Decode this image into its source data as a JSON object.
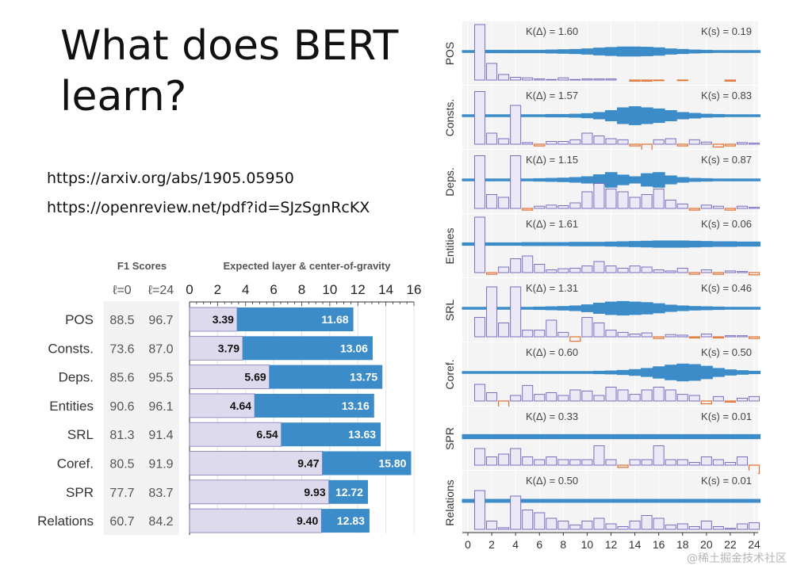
{
  "slide": {
    "title": "What does BERT learn?",
    "links": [
      "https://arxiv.org/abs/1905.05950",
      "https://openreview.net/pdf?id=SJzSgnRcKX"
    ],
    "watermark": "@稀土掘金技术社区"
  },
  "colors": {
    "accent": "#3b8cc8",
    "light_bar": "#dcdaec",
    "light_bar_border": "#8078b8",
    "hist_bar": "#ece9f6",
    "hist_border": "#7a70c0",
    "neg_hist": "#e07030",
    "panel_bg": "#f4f4f4"
  },
  "chart_data": [
    {
      "type": "table",
      "title": "F1 Scores",
      "columns": [
        "ℓ=0",
        "ℓ=24"
      ],
      "rows": [
        {
          "label": "POS",
          "values": [
            "88.5",
            "96.7"
          ]
        },
        {
          "label": "Consts.",
          "values": [
            "73.6",
            "87.0"
          ]
        },
        {
          "label": "Deps.",
          "values": [
            "85.6",
            "95.5"
          ]
        },
        {
          "label": "Entities",
          "values": [
            "90.6",
            "96.1"
          ]
        },
        {
          "label": "SRL",
          "values": [
            "81.3",
            "91.4"
          ]
        },
        {
          "label": "Coref.",
          "values": [
            "80.5",
            "91.9"
          ]
        },
        {
          "label": "SPR",
          "values": [
            "77.7",
            "83.7"
          ]
        },
        {
          "label": "Relations",
          "values": [
            "60.7",
            "84.2"
          ]
        }
      ]
    },
    {
      "type": "bar",
      "title": "Expected layer & center-of-gravity",
      "categories": [
        "POS",
        "Consts.",
        "Deps.",
        "Entities",
        "SRL",
        "Coref.",
        "SPR",
        "Relations"
      ],
      "xlim": [
        0,
        16
      ],
      "xticks": [
        0,
        2,
        4,
        6,
        8,
        10,
        12,
        14,
        16
      ],
      "series": [
        {
          "values": [
            3.39,
            3.79,
            5.69,
            4.64,
            6.54,
            9.47,
            9.93,
            9.4
          ],
          "labels": [
            "3.39",
            "3.79",
            "5.69",
            "4.64",
            "6.54",
            "9.47",
            "9.93",
            "9.40"
          ]
        },
        {
          "values": [
            11.68,
            13.06,
            13.75,
            13.16,
            13.63,
            15.8,
            12.72,
            12.83
          ],
          "labels": [
            "11.68",
            "13.06",
            "13.75",
            "13.16",
            "13.63",
            "15.80",
            "12.72",
            "12.83"
          ]
        }
      ]
    },
    {
      "type": "bar",
      "xlim": [
        0,
        24
      ],
      "xticks": [
        0,
        2,
        4,
        6,
        8,
        10,
        12,
        14,
        16,
        18,
        20,
        22,
        24
      ],
      "panels": [
        {
          "label": "POS",
          "k_delta": "K(Δ) = 1.60",
          "k_s": "K(s) = 0.19",
          "width": [
            0.5,
            0.5,
            0.6,
            0.6,
            0.6,
            0.6,
            0.6,
            0.7,
            0.8,
            0.9,
            1.1,
            1.4,
            1.6,
            1.8,
            1.8,
            1.7,
            1.5,
            1.1,
            0.9,
            0.7,
            0.6,
            0.5,
            0.5,
            0.5,
            0.5
          ],
          "delta": [
            0,
            1.0,
            0.3,
            0.1,
            0.05,
            0.04,
            0.02,
            0.01,
            0.04,
            0.01,
            0.02,
            0.02,
            0.02,
            0,
            -0.02,
            -0.02,
            -0.01,
            0,
            -0.01,
            0,
            0,
            0,
            -0.02,
            0,
            0
          ]
        },
        {
          "label": "Consts.",
          "k_delta": "K(Δ) = 1.57",
          "k_s": "K(s) = 0.83",
          "width": [
            0.5,
            0.5,
            0.5,
            0.5,
            0.5,
            0.5,
            0.5,
            0.6,
            0.6,
            0.7,
            0.9,
            1.3,
            2.0,
            3.0,
            3.4,
            3.0,
            2.6,
            2.0,
            1.3,
            1.0,
            0.7,
            0.6,
            0.5,
            0.5,
            0.5
          ],
          "delta": [
            0,
            0.95,
            0.2,
            0.1,
            0.7,
            0.03,
            -0.03,
            0.05,
            0.05,
            0.08,
            0.2,
            0.15,
            0.1,
            0.08,
            -0.03,
            -0.15,
            0.08,
            0.1,
            -0.03,
            0.08,
            0.04,
            -0.05,
            -0.03,
            0.03,
            0.02
          ]
        },
        {
          "label": "Deps.",
          "k_delta": "K(Δ) = 1.15",
          "k_s": "K(s) = 0.87",
          "width": [
            0.5,
            0.5,
            0.5,
            0.5,
            0.5,
            0.5,
            0.6,
            0.7,
            0.8,
            1.0,
            1.3,
            2.0,
            2.8,
            1.9,
            1.3,
            2.4,
            2.8,
            1.6,
            1.0,
            0.7,
            0.6,
            0.5,
            0.5,
            0.5,
            0.5
          ],
          "delta": [
            0,
            0.95,
            0.25,
            0.2,
            0.95,
            -0.03,
            0.04,
            0.06,
            0.05,
            0.1,
            0.3,
            0.45,
            0.35,
            0.3,
            0.2,
            0.25,
            0.35,
            0.15,
            0.08,
            -0.03,
            0.06,
            0.04,
            -0.03,
            0.04,
            0.02
          ]
        },
        {
          "label": "Entities",
          "k_delta": "K(Δ) = 1.61",
          "k_s": "K(s) = 0.06",
          "width": [
            0.6,
            0.6,
            0.6,
            0.6,
            0.6,
            0.7,
            0.7,
            0.7,
            0.7,
            0.8,
            0.8,
            0.8,
            0.9,
            1.0,
            1.1,
            1.2,
            1.3,
            1.3,
            1.3,
            1.2,
            1.1,
            1.0,
            1.0,
            0.9,
            0.9
          ],
          "delta": [
            0,
            1.0,
            -0.03,
            0.1,
            0.25,
            0.3,
            0.15,
            0.05,
            0.07,
            0.08,
            0.12,
            0.2,
            0.12,
            0.08,
            0.12,
            0.1,
            0.05,
            0.03,
            0.08,
            -0.03,
            0.05,
            -0.03,
            0.03,
            0.02,
            -0.04
          ]
        },
        {
          "label": "SRL",
          "k_delta": "K(Δ) = 1.31",
          "k_s": "K(s) = 0.46",
          "width": [
            0.5,
            0.5,
            0.5,
            0.5,
            0.5,
            0.5,
            0.6,
            0.7,
            0.8,
            1.0,
            1.4,
            2.0,
            2.4,
            2.6,
            2.4,
            2.2,
            1.8,
            1.3,
            1.0,
            0.8,
            0.7,
            0.6,
            0.5,
            0.5,
            0.5
          ],
          "delta": [
            0,
            0.35,
            0.9,
            0.25,
            0.9,
            0.12,
            0.12,
            0.3,
            0.08,
            -0.08,
            0.35,
            0.25,
            0.12,
            0.08,
            0.05,
            0.07,
            -0.03,
            0.04,
            0.03,
            -0.02,
            0.05,
            -0.02,
            0.02,
            0.02,
            -0.03
          ]
        },
        {
          "label": "Coref.",
          "k_delta": "K(Δ) = 0.60",
          "k_s": "K(s) = 0.50",
          "width": [
            0.5,
            0.5,
            0.5,
            0.5,
            0.5,
            0.5,
            0.5,
            0.5,
            0.5,
            0.5,
            0.5,
            0.6,
            0.7,
            0.9,
            1.2,
            1.6,
            2.2,
            2.8,
            3.2,
            3.0,
            2.4,
            1.6,
            1.1,
            0.8,
            0.6
          ],
          "delta": [
            0,
            0.3,
            0.15,
            -0.5,
            0.1,
            0.28,
            0.12,
            0.15,
            0.1,
            0.2,
            0.18,
            0.1,
            0.25,
            0.2,
            0.12,
            0.2,
            0.25,
            0.2,
            0.12,
            0.1,
            -0.05,
            0.08,
            -0.02,
            0.05,
            0.08
          ]
        },
        {
          "label": "SPR",
          "k_delta": "K(Δ) = 0.33",
          "k_s": "K(s) = 0.01",
          "width": [
            0.9,
            0.9,
            0.9,
            0.9,
            0.9,
            0.9,
            0.9,
            0.9,
            0.9,
            0.9,
            0.9,
            0.9,
            0.9,
            0.9,
            0.9,
            0.9,
            0.9,
            0.9,
            0.9,
            0.9,
            0.9,
            0.9,
            0.9,
            0.9,
            0.9
          ],
          "delta": [
            0,
            0.3,
            0.15,
            0.2,
            0.3,
            0.15,
            0.1,
            0.15,
            0.1,
            0.1,
            0.1,
            0.35,
            0.1,
            -0.04,
            0.1,
            0.1,
            0.35,
            0.1,
            0.1,
            0.05,
            0.15,
            0.1,
            0.05,
            0.15,
            -0.15
          ]
        },
        {
          "label": "Relations",
          "k_delta": "K(Δ) = 0.50",
          "k_s": "K(s) = 0.01",
          "width": [
            0.7,
            0.7,
            0.7,
            0.7,
            0.7,
            0.7,
            0.7,
            0.7,
            0.7,
            0.7,
            0.7,
            0.7,
            0.7,
            0.7,
            0.7,
            0.7,
            0.7,
            0.7,
            0.7,
            0.7,
            0.7,
            0.7,
            0.7,
            0.7,
            0.7
          ],
          "delta": [
            0,
            0.7,
            0.15,
            0.03,
            0.6,
            0.35,
            0.3,
            0.2,
            0.15,
            0.08,
            0.15,
            0.2,
            0.1,
            0.05,
            0.15,
            0.25,
            0.2,
            0.08,
            0.1,
            0.05,
            0.15,
            0.05,
            0.02,
            0.1,
            0.12
          ]
        }
      ]
    }
  ]
}
